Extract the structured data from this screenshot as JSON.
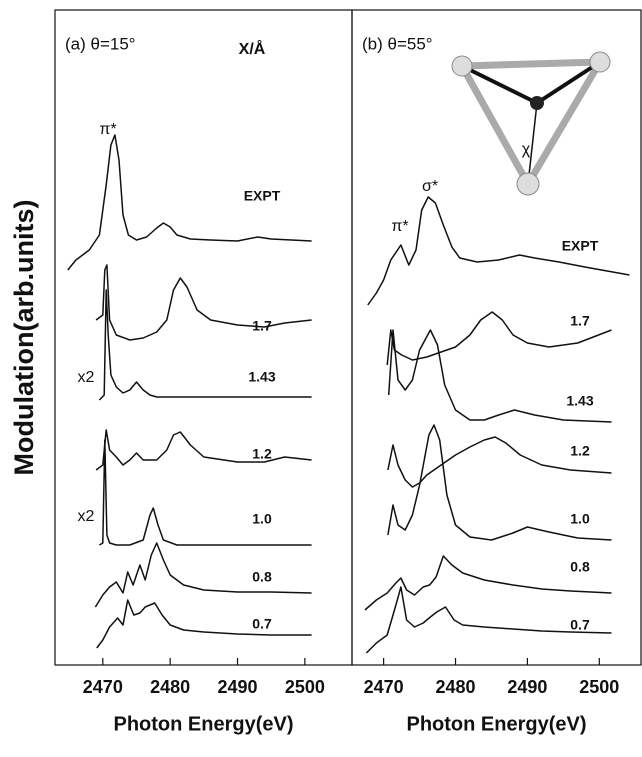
{
  "chart_data": [
    {
      "type": "line",
      "title": "(a) θ=15°",
      "ylabel": "Modulation(arb.units)",
      "xlabel": "Photon Energy(eV)",
      "color": "#111111",
      "xlim": [
        2462.9,
        2507
      ],
      "xticks": [
        2470,
        2480,
        2490,
        2500
      ],
      "ylim": [
        0,
        655
      ],
      "annotations": [
        "X/Å",
        "π*",
        "x2",
        "x2"
      ],
      "series": [
        {
          "name": "EXPT",
          "x": [
            2464.8,
            2466,
            2468,
            2469.5,
            2470.5,
            2471.2,
            2471.8,
            2472.4,
            2473,
            2473.8,
            2475,
            2476.5,
            2478,
            2479,
            2480,
            2481,
            2483,
            2486,
            2490,
            2493,
            2495,
            2498,
            2501
          ],
          "values": [
            395,
            405,
            415,
            430,
            480,
            520,
            530,
            505,
            450,
            430,
            425,
            428,
            437,
            442,
            438,
            430,
            426,
            425,
            424,
            428,
            426,
            425,
            424
          ]
        },
        {
          "name": "1.7",
          "x": [
            2469,
            2470,
            2470.3,
            2470.6,
            2471,
            2472,
            2474,
            2476,
            2478,
            2479.5,
            2480.5,
            2481.5,
            2482.5,
            2484,
            2486,
            2490,
            2494,
            2497,
            2501
          ],
          "values": [
            345,
            350,
            395,
            400,
            345,
            330,
            325,
            327,
            333,
            345,
            375,
            387,
            378,
            355,
            345,
            340,
            338,
            342,
            345
          ]
        },
        {
          "name": "1.43",
          "x": [
            2469.5,
            2470.2,
            2470.5,
            2470.8,
            2471.2,
            2472,
            2473,
            2474,
            2475,
            2476,
            2477,
            2478,
            2480,
            2485,
            2490,
            2495,
            2501
          ],
          "values": [
            265,
            270,
            375,
            330,
            290,
            278,
            272,
            275,
            283,
            275,
            270,
            268,
            268,
            268,
            268,
            268,
            268
          ]
        },
        {
          "name": "1.2",
          "x": [
            2469,
            2470,
            2470.5,
            2471,
            2472,
            2473,
            2474,
            2475,
            2476,
            2478,
            2479.5,
            2480.5,
            2481.5,
            2483,
            2485,
            2490,
            2494,
            2497,
            2501
          ],
          "values": [
            195,
            200,
            235,
            215,
            208,
            200,
            205,
            212,
            205,
            205,
            215,
            230,
            233,
            220,
            208,
            203,
            203,
            208,
            205
          ]
        },
        {
          "name": "1.0",
          "x": [
            2469.5,
            2470,
            2470.3,
            2470.6,
            2471,
            2472,
            2474,
            2476,
            2477,
            2477.5,
            2478.2,
            2479,
            2481,
            2485,
            2490,
            2495,
            2501
          ],
          "values": [
            120,
            122,
            225,
            130,
            122,
            120,
            120,
            125,
            150,
            157,
            140,
            125,
            120,
            120,
            120,
            120,
            120
          ]
        },
        {
          "name": "0.8",
          "x": [
            2468.9,
            2470,
            2471,
            2472,
            2473,
            2473.7,
            2474.5,
            2475.5,
            2476.3,
            2477.2,
            2478,
            2479,
            2480,
            2482,
            2485,
            2490,
            2495,
            2501
          ],
          "values": [
            58,
            70,
            78,
            83,
            72,
            93,
            80,
            100,
            85,
            110,
            122,
            105,
            90,
            80,
            75,
            73,
            73,
            72
          ]
        },
        {
          "name": "0.7",
          "x": [
            2469.1,
            2470,
            2471,
            2472.2,
            2473,
            2473.7,
            2474.6,
            2475.5,
            2476.3,
            2477.7,
            2478.8,
            2480,
            2482,
            2485,
            2490,
            2495,
            2501
          ],
          "values": [
            17,
            25,
            38,
            47,
            40,
            65,
            50,
            52,
            58,
            62,
            50,
            40,
            35,
            33,
            31,
            30,
            30
          ]
        }
      ]
    },
    {
      "type": "line",
      "title": "(b) θ=55°",
      "xlabel": "Photon Energy(eV)",
      "color": "#111111",
      "xlim": [
        2465.6,
        2505.8
      ],
      "xticks": [
        2470,
        2480,
        2490,
        2500
      ],
      "ylim": [
        0,
        655
      ],
      "annotations": [
        "π*",
        "σ*",
        "χ"
      ],
      "series": [
        {
          "name": "EXPT",
          "x": [
            2467.8,
            2469,
            2470,
            2471,
            2472.4,
            2473.5,
            2474.5,
            2475.3,
            2476.2,
            2477.2,
            2478.3,
            2479.5,
            2480.6,
            2483,
            2486,
            2488.9,
            2491,
            2494.4,
            2498,
            2504.2
          ],
          "values": [
            360,
            372,
            385,
            405,
            420,
            400,
            415,
            455,
            468,
            462,
            440,
            418,
            407,
            403,
            405,
            410,
            407,
            403,
            398,
            390
          ]
        },
        {
          "name": "1.7",
          "x": [
            2470.5,
            2471,
            2471.5,
            2472.5,
            2474,
            2476,
            2478,
            2480,
            2482,
            2483.5,
            2485.1,
            2486.5,
            2488,
            2490,
            2493,
            2497,
            2501.7
          ],
          "values": [
            300,
            335,
            315,
            310,
            305,
            308,
            313,
            318,
            330,
            345,
            353,
            345,
            330,
            322,
            318,
            322,
            335
          ]
        },
        {
          "name": "1.43",
          "x": [
            2470.7,
            2471.3,
            2472,
            2473,
            2474,
            2475,
            2476.5,
            2477.5,
            2478.5,
            2480,
            2482,
            2484,
            2486,
            2488.2,
            2491,
            2495,
            2501.7
          ],
          "values": [
            270,
            335,
            285,
            275,
            285,
            315,
            335,
            320,
            280,
            255,
            245,
            245,
            250,
            255,
            250,
            245,
            243
          ]
        },
        {
          "name": "1.2",
          "x": [
            2470.6,
            2471.3,
            2472,
            2473,
            2474,
            2475,
            2476,
            2478,
            2480,
            2482,
            2484,
            2485.5,
            2487,
            2489,
            2492,
            2496,
            2501.7
          ],
          "values": [
            195,
            220,
            200,
            185,
            178,
            182,
            190,
            200,
            210,
            218,
            225,
            228,
            222,
            210,
            200,
            195,
            192
          ]
        },
        {
          "name": "1.0",
          "x": [
            2470.6,
            2471.3,
            2472,
            2473,
            2474,
            2475,
            2476.3,
            2477,
            2477.8,
            2478.8,
            2480,
            2482,
            2485,
            2488,
            2490,
            2493,
            2497,
            2501.7
          ],
          "values": [
            130,
            160,
            140,
            135,
            150,
            180,
            230,
            240,
            225,
            170,
            140,
            128,
            125,
            132,
            138,
            133,
            127,
            125
          ]
        },
        {
          "name": "0.8",
          "x": [
            2467.4,
            2469,
            2470.5,
            2471.7,
            2472.4,
            2473.2,
            2474.3,
            2475.5,
            2476.4,
            2477.3,
            2478.3,
            2479.5,
            2481,
            2484,
            2488,
            2492,
            2496,
            2501.7
          ],
          "values": [
            55,
            65,
            72,
            82,
            87,
            75,
            70,
            78,
            80,
            88,
            109,
            100,
            92,
            85,
            80,
            76,
            74,
            72
          ]
        },
        {
          "name": "0.7",
          "x": [
            2467.6,
            2469,
            2470.5,
            2471.7,
            2472.4,
            2473.2,
            2474.3,
            2475.5,
            2476.5,
            2477.4,
            2478.6,
            2479.8,
            2481,
            2484,
            2488,
            2492,
            2496,
            2501.7
          ],
          "values": [
            12,
            22,
            30,
            60,
            78,
            45,
            38,
            42,
            48,
            53,
            58,
            45,
            40,
            38,
            36,
            34,
            33,
            32
          ]
        }
      ]
    }
  ]
}
